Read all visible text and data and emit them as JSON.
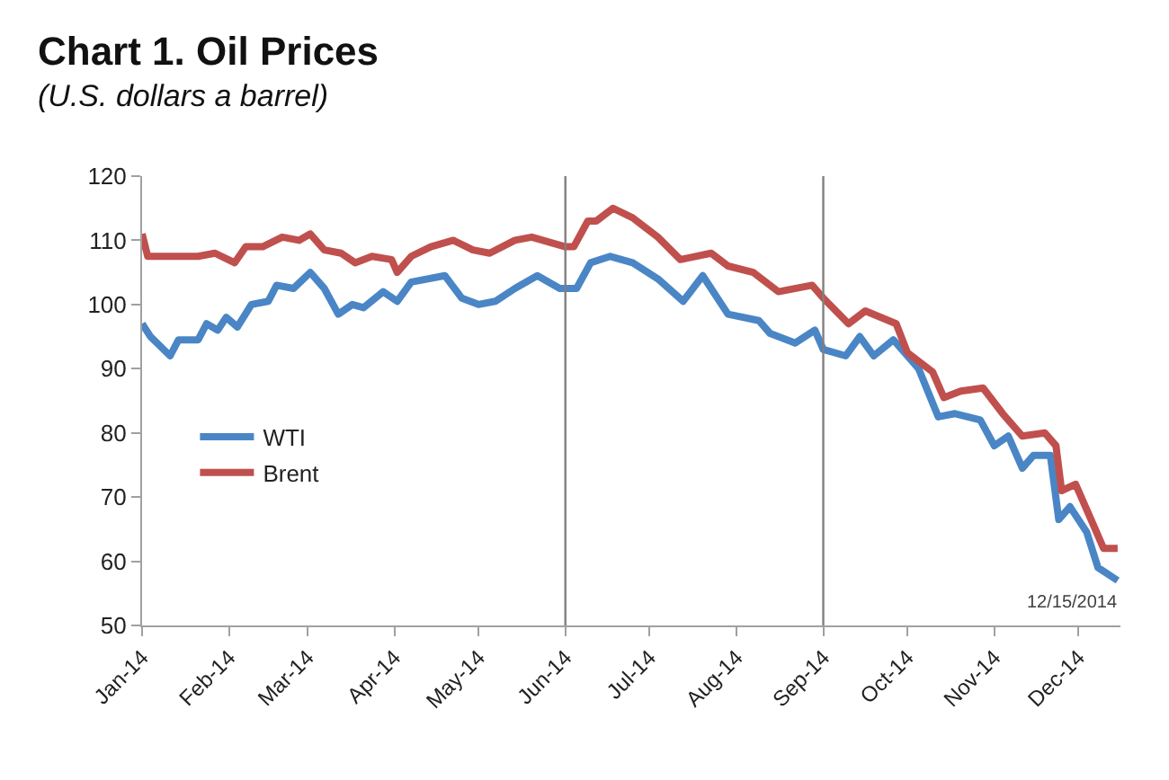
{
  "chart_data": {
    "type": "line",
    "title": "Chart 1. Oil Prices",
    "subtitle": "(U.S. dollars a barrel)",
    "series": [
      {
        "name": "WTI",
        "color": "#4a86c5",
        "x": [
          "2014-01-01",
          "2014-01-04",
          "2014-01-11",
          "2014-01-14",
          "2014-01-21",
          "2014-01-24",
          "2014-01-28",
          "2014-01-31",
          "2014-02-04",
          "2014-02-09",
          "2014-02-15",
          "2014-02-18",
          "2014-02-24",
          "2014-03-02",
          "2014-03-07",
          "2014-03-12",
          "2014-03-17",
          "2014-03-21",
          "2014-03-28",
          "2014-04-02",
          "2014-04-07",
          "2014-04-19",
          "2014-04-25",
          "2014-05-01",
          "2014-05-07",
          "2014-05-14",
          "2014-05-22",
          "2014-05-30",
          "2014-06-05",
          "2014-06-10",
          "2014-06-17",
          "2014-06-25",
          "2014-07-04",
          "2014-07-13",
          "2014-07-20",
          "2014-07-29",
          "2014-08-09",
          "2014-08-13",
          "2014-08-22",
          "2014-08-29",
          "2014-09-01",
          "2014-09-09",
          "2014-09-14",
          "2014-09-19",
          "2014-09-26",
          "2014-10-05",
          "2014-10-12",
          "2014-10-18",
          "2014-10-27",
          "2014-11-01",
          "2014-11-06",
          "2014-11-11",
          "2014-11-15",
          "2014-11-21",
          "2014-11-24",
          "2014-11-28",
          "2014-12-04",
          "2014-12-08",
          "2014-12-15"
        ],
        "values": [
          97,
          95,
          92,
          94.5,
          94.5,
          97,
          96,
          98,
          96.5,
          100,
          100.5,
          103,
          102.5,
          105,
          102.5,
          98.5,
          100,
          99.5,
          102,
          100.5,
          103.5,
          104.5,
          101,
          100,
          100.5,
          102.5,
          104.5,
          102.5,
          102.5,
          106.5,
          107.5,
          106.5,
          104,
          100.5,
          104.5,
          98.5,
          97.5,
          95.5,
          94,
          96,
          93,
          92,
          95,
          92,
          94.5,
          90,
          82.5,
          83,
          82,
          78,
          79.5,
          74.5,
          76.5,
          76.5,
          66.5,
          68.5,
          64.5,
          59,
          57
        ]
      },
      {
        "name": "Brent",
        "color": "#c0504d",
        "x": [
          "2014-01-01",
          "2014-01-03",
          "2014-01-10",
          "2014-01-21",
          "2014-01-27",
          "2014-02-03",
          "2014-02-07",
          "2014-02-13",
          "2014-02-20",
          "2014-02-26",
          "2014-03-02",
          "2014-03-07",
          "2014-03-13",
          "2014-03-18",
          "2014-03-24",
          "2014-03-31",
          "2014-04-02",
          "2014-04-07",
          "2014-04-14",
          "2014-04-22",
          "2014-04-29",
          "2014-05-05",
          "2014-05-14",
          "2014-05-20",
          "2014-06-01",
          "2014-06-04",
          "2014-06-09",
          "2014-06-12",
          "2014-06-18",
          "2014-06-25",
          "2014-07-04",
          "2014-07-12",
          "2014-07-23",
          "2014-07-29",
          "2014-08-07",
          "2014-08-16",
          "2014-08-28",
          "2014-09-01",
          "2014-09-10",
          "2014-09-16",
          "2014-09-27",
          "2014-10-01",
          "2014-10-10",
          "2014-10-14",
          "2014-10-20",
          "2014-10-28",
          "2014-11-04",
          "2014-11-11",
          "2014-11-19",
          "2014-11-23",
          "2014-11-25",
          "2014-11-30",
          "2014-12-06",
          "2014-12-10",
          "2014-12-15"
        ],
        "values": [
          111,
          107.5,
          107.5,
          107.5,
          108,
          106.5,
          109,
          109,
          110.5,
          110,
          111,
          108.5,
          108,
          106.5,
          107.5,
          107,
          105,
          107.5,
          109,
          110,
          108.5,
          108,
          110,
          110.5,
          109,
          109,
          113,
          113,
          115,
          113.5,
          110.5,
          107,
          108,
          106,
          105,
          102,
          103,
          101,
          97,
          99,
          97,
          92.5,
          89.5,
          85.5,
          86.5,
          87,
          83,
          79.5,
          80,
          78,
          71,
          72,
          66,
          62,
          62
        ]
      }
    ],
    "xlim": [
      "2014-01-01",
      "2014-12-16"
    ],
    "xticks": [
      {
        "value": "2014-01-01",
        "label": "Jan-14"
      },
      {
        "value": "2014-02-01",
        "label": "Feb-14"
      },
      {
        "value": "2014-03-01",
        "label": "Mar-14"
      },
      {
        "value": "2014-04-01",
        "label": "Apr-14"
      },
      {
        "value": "2014-05-01",
        "label": "May-14"
      },
      {
        "value": "2014-06-01",
        "label": "Jun-14"
      },
      {
        "value": "2014-07-01",
        "label": "Jul-14"
      },
      {
        "value": "2014-08-01",
        "label": "Aug-14"
      },
      {
        "value": "2014-09-01",
        "label": "Sep-14"
      },
      {
        "value": "2014-10-01",
        "label": "Oct-14"
      },
      {
        "value": "2014-11-01",
        "label": "Nov-14"
      },
      {
        "value": "2014-12-01",
        "label": "Dec-14"
      }
    ],
    "ylim": [
      50,
      120
    ],
    "yticks": [
      50,
      60,
      70,
      80,
      90,
      100,
      110,
      120
    ],
    "ref_lines": [
      {
        "axis": "x",
        "value": "2014-06-01",
        "color": "#808080"
      },
      {
        "axis": "x",
        "value": "2014-09-01",
        "color": "#808080"
      }
    ],
    "annotations": [
      "12/15/2014"
    ],
    "legend": "left",
    "marker": "none",
    "line_style": "solid"
  }
}
